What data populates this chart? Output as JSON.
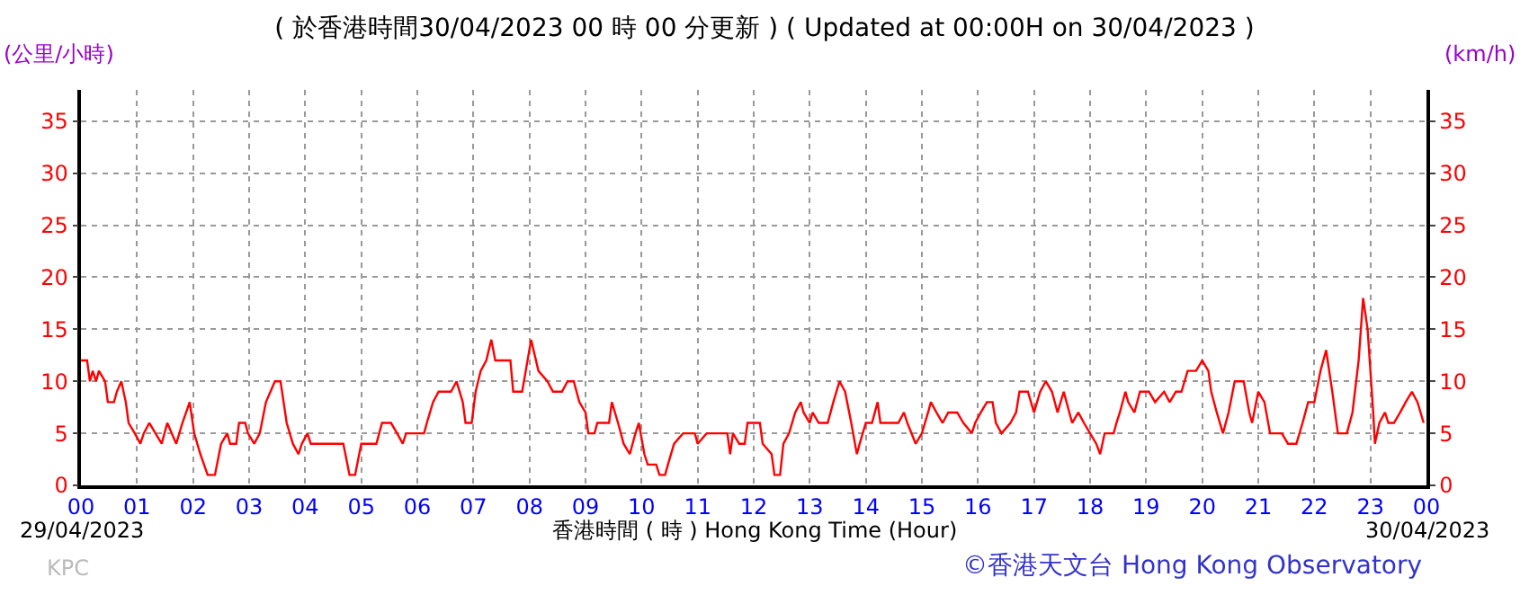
{
  "chart_data": {
    "type": "line",
    "title": "( 於香港時間30/04/2023 00 時 00 分更新 ) ( Updated at 00:00H on 30/04/2023 )",
    "xlabel": "香港時間 ( 時 ) Hong Kong Time (Hour)",
    "ylabel": "(公里/小時)",
    "y2label": "(km/h)",
    "annotations": [
      "29/04/2023",
      "30/04/2023",
      "KPC",
      "©香港天文台 Hong Kong Observatory"
    ],
    "xlim": [
      0,
      24
    ],
    "xticks": [
      {
        "value": 0,
        "label": "00"
      },
      {
        "value": 1,
        "label": "01"
      },
      {
        "value": 2,
        "label": "02"
      },
      {
        "value": 3,
        "label": "03"
      },
      {
        "value": 4,
        "label": "04"
      },
      {
        "value": 5,
        "label": "05"
      },
      {
        "value": 6,
        "label": "06"
      },
      {
        "value": 7,
        "label": "07"
      },
      {
        "value": 8,
        "label": "08"
      },
      {
        "value": 9,
        "label": "09"
      },
      {
        "value": 10,
        "label": "10"
      },
      {
        "value": 11,
        "label": "11"
      },
      {
        "value": 12,
        "label": "12"
      },
      {
        "value": 13,
        "label": "13"
      },
      {
        "value": 14,
        "label": "14"
      },
      {
        "value": 15,
        "label": "15"
      },
      {
        "value": 16,
        "label": "16"
      },
      {
        "value": 17,
        "label": "17"
      },
      {
        "value": 18,
        "label": "18"
      },
      {
        "value": 19,
        "label": "19"
      },
      {
        "value": 20,
        "label": "20"
      },
      {
        "value": 21,
        "label": "21"
      },
      {
        "value": 22,
        "label": "22"
      },
      {
        "value": 23,
        "label": "23"
      },
      {
        "value": 24,
        "label": "00"
      }
    ],
    "ylim": [
      0,
      38
    ],
    "yticks": [
      0,
      5,
      10,
      15,
      20,
      25,
      30,
      35
    ],
    "y2lim": [
      0,
      38
    ],
    "y2ticks": [
      0,
      5,
      10,
      15,
      20,
      25,
      30,
      35
    ],
    "grid": true,
    "marker": "none",
    "line_style": "solid",
    "series": [
      {
        "color": "#ff0000",
        "x": [
          0,
          0.11,
          0.16,
          0.21,
          0.27,
          0.32,
          0.43,
          0.48,
          0.59,
          0.64,
          0.72,
          0.8,
          0.85,
          0.96,
          1.06,
          1.12,
          1.22,
          1.33,
          1.44,
          1.54,
          1.7,
          1.81,
          1.94,
          2.02,
          2.13,
          2.26,
          2.39,
          2.5,
          2.61,
          2.66,
          2.77,
          2.82,
          2.93,
          2.98,
          3.09,
          3.19,
          3.3,
          3.46,
          3.56,
          3.67,
          3.78,
          3.88,
          3.94,
          4.04,
          4.1,
          4.68,
          4.79,
          4.89,
          5,
          5.27,
          5.37,
          5.53,
          5.64,
          5.74,
          5.8,
          6.12,
          6.17,
          6.28,
          6.38,
          6.49,
          6.6,
          6.7,
          6.81,
          6.86,
          6.97,
          7.04,
          7.13,
          7.23,
          7.32,
          7.39,
          7.66,
          7.71,
          7.87,
          8.03,
          8.16,
          8.32,
          8.42,
          8.58,
          8.68,
          8.79,
          8.89,
          9,
          9.05,
          9.16,
          9.21,
          9.42,
          9.47,
          9.58,
          9.68,
          9.79,
          9.89,
          9.95,
          10.05,
          10.11,
          10.26,
          10.32,
          10.42,
          10.47,
          10.58,
          10.74,
          10.95,
          11,
          11.16,
          11.53,
          11.58,
          11.63,
          11.74,
          11.84,
          11.89,
          12.11,
          12.16,
          12.32,
          12.37,
          12.47,
          12.53,
          12.63,
          12.74,
          12.84,
          12.89,
          13,
          13.05,
          13.16,
          13.32,
          13.42,
          13.53,
          13.63,
          13.74,
          13.84,
          13.89,
          14,
          14.11,
          14.21,
          14.26,
          14.58,
          14.68,
          14.74,
          14.89,
          15,
          15.11,
          15.16,
          15.26,
          15.37,
          15.47,
          15.63,
          15.74,
          15.89,
          15.95,
          16.05,
          16.16,
          16.26,
          16.32,
          16.42,
          16.58,
          16.68,
          16.74,
          16.89,
          17,
          17.11,
          17.21,
          17.32,
          17.42,
          17.53,
          17.58,
          17.68,
          17.79,
          17.89,
          18,
          18.11,
          18.18,
          18.26,
          18.42,
          18.47,
          18.53,
          18.63,
          18.68,
          18.79,
          18.89,
          19.05,
          19.16,
          19.32,
          19.42,
          19.53,
          19.63,
          19.74,
          19.89,
          20,
          20.11,
          20.16,
          20.26,
          20.37,
          20.47,
          20.58,
          20.74,
          20.84,
          20.89,
          21,
          21.11,
          21.21,
          21.42,
          21.53,
          21.68,
          21.79,
          21.89,
          22,
          22.11,
          22.21,
          22.32,
          22.42,
          22.58,
          22.68,
          22.79,
          22.87,
          22.95,
          23.05,
          23.08,
          23.16,
          23.26,
          23.32,
          23.42,
          23.53,
          23.63,
          23.74,
          23.84,
          23.95
        ],
        "values": [
          12,
          12,
          10,
          11,
          10,
          11,
          10,
          8,
          8,
          9,
          10,
          8,
          6,
          5,
          4,
          5,
          6,
          5,
          4,
          6,
          4,
          6,
          8,
          5,
          3,
          1,
          1,
          4,
          5,
          4,
          4,
          6,
          6,
          5,
          4,
          5,
          8,
          10,
          10,
          6,
          4,
          3,
          4,
          5,
          4,
          4,
          1,
          1,
          4,
          4,
          6,
          6,
          5,
          4,
          5,
          5,
          6,
          8,
          9,
          9,
          9,
          10,
          8,
          6,
          6,
          9,
          11,
          12,
          14,
          12,
          12,
          9,
          9,
          14,
          11,
          10,
          9,
          9,
          10,
          10,
          8,
          7,
          5,
          5,
          6,
          6,
          8,
          6,
          4,
          3,
          5,
          6,
          3,
          2,
          2,
          1,
          1,
          2,
          4,
          5,
          5,
          4,
          5,
          5,
          3,
          5,
          4,
          4,
          6,
          6,
          4,
          3,
          1,
          1,
          4,
          5,
          7,
          8,
          7,
          6,
          7,
          6,
          6,
          8,
          10,
          9,
          6,
          3,
          4,
          6,
          6,
          8,
          6,
          6,
          7,
          6,
          4,
          5,
          7,
          8,
          7,
          6,
          7,
          7,
          6,
          5,
          6,
          7,
          8,
          8,
          6,
          5,
          6,
          7,
          9,
          9,
          7,
          9,
          10,
          9,
          7,
          9,
          8,
          6,
          7,
          6,
          5,
          4,
          3,
          5,
          5,
          6,
          7,
          9,
          8,
          7,
          9,
          9,
          8,
          9,
          8,
          9,
          9,
          11,
          11,
          12,
          11,
          9,
          7,
          5,
          7,
          10,
          10,
          7,
          6,
          9,
          8,
          5,
          5,
          4,
          4,
          6,
          8,
          8,
          11,
          13,
          9,
          5,
          5,
          7,
          12,
          18,
          15,
          7,
          4,
          6,
          7,
          6,
          6,
          7,
          8,
          9,
          8,
          6
        ]
      }
    ]
  }
}
